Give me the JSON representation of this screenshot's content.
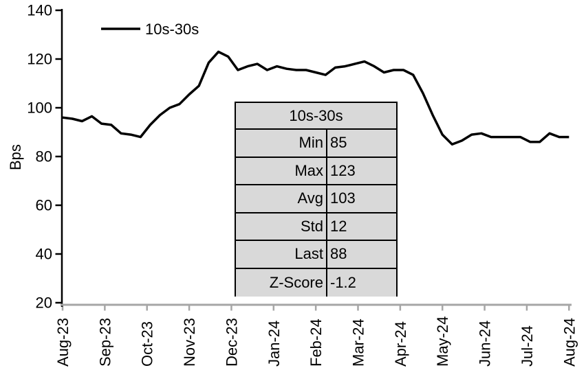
{
  "chart_data": {
    "type": "line",
    "title": "",
    "ylabel": "Bps",
    "xlabel": "",
    "grid": false,
    "legend_position": "top-left",
    "legend_entries": [
      "10s-30s"
    ],
    "ylim": [
      20,
      140
    ],
    "y_tick_labels": [
      "140",
      "120",
      "100",
      "80",
      "60",
      "40",
      "20"
    ],
    "y_tick_values": [
      140,
      120,
      100,
      80,
      60,
      40,
      20
    ],
    "x_tick_labels": [
      "Aug-23",
      "Sep-23",
      "Oct-23",
      "Nov-23",
      "Dec-23",
      "Jan-24",
      "Feb-24",
      "Mar-24",
      "Apr-24",
      "May-24",
      "Jun-24",
      "Jul-24",
      "Aug-24"
    ],
    "x_frequency": "weekly",
    "series": [
      {
        "name": "10s-30s",
        "color": "#000000",
        "values": [
          96,
          95.5,
          94.5,
          96.5,
          93.5,
          93,
          89.5,
          89,
          88,
          93,
          97,
          100,
          101.5,
          105.5,
          109,
          118.5,
          123,
          121,
          115.5,
          117,
          118,
          115.5,
          117,
          116,
          115.5,
          115.5,
          114.5,
          113.5,
          116.5,
          117,
          118,
          119,
          117,
          114.5,
          115.5,
          115.5,
          113.5,
          106,
          97,
          89,
          85,
          86.5,
          89,
          89.5,
          88,
          88,
          88,
          88,
          86,
          86,
          89.5,
          88,
          88
        ]
      }
    ],
    "axis_colors": {
      "y_axis": "#000000",
      "x_axis": "#a6a6a6"
    }
  },
  "stats_table": {
    "title": "10s-30s",
    "background": "#d9d9d9",
    "rows": [
      {
        "label": "Min",
        "value": "85"
      },
      {
        "label": "Max",
        "value": "123"
      },
      {
        "label": "Avg",
        "value": "103"
      },
      {
        "label": "Std",
        "value": "12"
      },
      {
        "label": "Last",
        "value": "88"
      },
      {
        "label": "Z-Score",
        "value": "-1.2"
      }
    ]
  }
}
